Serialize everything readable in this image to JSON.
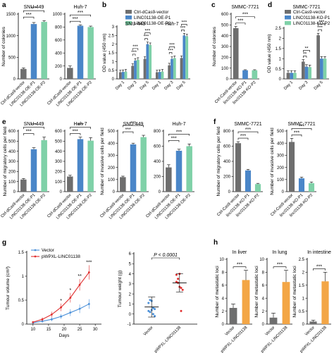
{
  "colors": {
    "ctrl": "#6e6e6e",
    "p1": "#4a86c8",
    "p2": "#7fd1a8",
    "vector": "#4a90d9",
    "linc": "#e03030",
    "h_bar": "#f3a646"
  },
  "chart_data": [
    {
      "id": "a1",
      "panel": "a",
      "type": "bar",
      "title": "SNU-449",
      "ylabel": "Number of colonies",
      "ylim": [
        0,
        1500
      ],
      "yticks": [
        0,
        500,
        1000,
        1500
      ],
      "categories": [
        "Ctrl-dCas9-vector",
        "LINC01138-OE-P1",
        "LINC01138-OE-P2"
      ],
      "values": [
        230,
        1270,
        1320
      ],
      "errors": [
        25,
        35,
        30
      ],
      "sig": [
        {
          "from": 0,
          "to": 1,
          "label": "***"
        },
        {
          "from": 0,
          "to": 2,
          "label": "***"
        }
      ]
    },
    {
      "id": "a2",
      "panel": "",
      "type": "bar",
      "title": "Huh-7",
      "ylabel": "",
      "ylim": [
        0,
        1000
      ],
      "yticks": [
        0,
        200,
        400,
        600,
        800,
        1000
      ],
      "categories": [
        "Ctrl-dCas9-vector",
        "LINC01138-OE-P1",
        "LINC01138-OE-P2"
      ],
      "values": [
        170,
        820,
        800
      ],
      "errors": [
        30,
        15,
        15
      ],
      "sig": [
        {
          "from": 0,
          "to": 1,
          "label": "***"
        },
        {
          "from": 0,
          "to": 2,
          "label": "***"
        }
      ]
    },
    {
      "id": "b",
      "panel": "b",
      "type": "bar",
      "titles": [
        "SNU-449",
        "Huh-7"
      ],
      "ylabel": "OD value (450 nm)",
      "ylim": [
        0,
        3
      ],
      "yticks": [
        0,
        0.5,
        1.0,
        1.5,
        2.0,
        2.5,
        3.0
      ],
      "categories": [
        "Day 1",
        "Day 3",
        "Day 5",
        "Day 1",
        "Day 3",
        "Day 5"
      ],
      "series": [
        {
          "name": "Ctrl-dCas9-vector",
          "values": [
            0.38,
            0.75,
            1.15,
            0.38,
            0.78,
            1.2
          ]
        },
        {
          "name": "LINC01138-OE-P1",
          "values": [
            0.4,
            1.05,
            2.0,
            0.4,
            1.15,
            2.5
          ]
        },
        {
          "name": "LINC01138-OE-P2",
          "values": [
            0.42,
            1.1,
            1.95,
            0.42,
            1.2,
            2.45
          ]
        }
      ],
      "sig": [
        {
          "from": 1,
          "to": 1,
          "label": "***"
        },
        {
          "from": 1,
          "to": 1,
          "label": "***"
        },
        {
          "from": 2,
          "to": 2,
          "label": "***"
        },
        {
          "from": 2,
          "to": 2,
          "label": "***"
        },
        {
          "from": 4,
          "to": 4,
          "label": "***"
        },
        {
          "from": 4,
          "to": 4,
          "label": "***"
        },
        {
          "from": 5,
          "to": 5,
          "label": "***"
        },
        {
          "from": 5,
          "to": 5,
          "label": "***"
        }
      ]
    },
    {
      "id": "c",
      "panel": "c",
      "type": "bar",
      "title": "SMMC-7721",
      "ylabel": "Number of colonies",
      "ylim": [
        0,
        600
      ],
      "yticks": [
        0,
        100,
        200,
        300,
        400,
        500,
        600
      ],
      "categories": [
        "Ctrl-Cas9-vector",
        "linc01138-KO-P1",
        "linc01138-KO-P2"
      ],
      "values": [
        470,
        80,
        80
      ],
      "errors": [
        15,
        5,
        5
      ],
      "sig": [
        {
          "from": 0,
          "to": 1,
          "label": "***"
        },
        {
          "from": 0,
          "to": 2,
          "label": "***"
        }
      ]
    },
    {
      "id": "d",
      "panel": "d",
      "type": "bar",
      "title": "SMMC-7721",
      "ylabel": "OD value (450 nm)",
      "ylim": [
        0,
        2.5
      ],
      "yticks": [
        0,
        0.5,
        1.0,
        1.5,
        2.0,
        2.5
      ],
      "categories": [
        "Day 1",
        "Day 3",
        "Day 5"
      ],
      "series": [
        {
          "name": "Ctrl-Cas9-vector",
          "values": [
            0.3,
            0.85,
            2.15
          ]
        },
        {
          "name": "LINC01138-KO-P1",
          "values": [
            0.3,
            0.6,
            1.0
          ]
        },
        {
          "name": "LINC01138-KO-P2",
          "values": [
            0.3,
            0.58,
            1.0
          ]
        }
      ],
      "sig": [
        {
          "from": 1,
          "to": 1,
          "label": "**"
        },
        {
          "from": 1,
          "to": 1,
          "label": "**"
        },
        {
          "from": 2,
          "to": 2,
          "label": "***"
        },
        {
          "from": 2,
          "to": 2,
          "label": "***"
        }
      ]
    },
    {
      "id": "e1",
      "panel": "e",
      "type": "bar",
      "title": "SNU-449",
      "ylabel": "Number of migratory cells per field",
      "ylim": [
        0,
        600
      ],
      "yticks": [
        0,
        100,
        200,
        300,
        400,
        500,
        600
      ],
      "categories": [
        "Ctrl-dCas9-vector",
        "LINC01138-OE-P1",
        "LINC01138-OE-P2"
      ],
      "values": [
        120,
        420,
        510
      ],
      "errors": [
        10,
        15,
        30
      ],
      "sig": [
        {
          "from": 0,
          "to": 1,
          "label": "***"
        },
        {
          "from": 0,
          "to": 2,
          "label": "***"
        }
      ]
    },
    {
      "id": "e2",
      "panel": "",
      "type": "bar",
      "title": "Huh-7",
      "ylabel": "",
      "ylim": [
        0,
        600
      ],
      "yticks": [
        0,
        100,
        200,
        300,
        400,
        500,
        600
      ],
      "categories": [
        "Ctrl-dCas9-vector",
        "LINC01138-OE-P1",
        "LINC01138-OE-P2"
      ],
      "values": [
        150,
        520,
        505
      ],
      "errors": [
        12,
        20,
        30
      ],
      "sig": [
        {
          "from": 0,
          "to": 1,
          "label": "***"
        },
        {
          "from": 0,
          "to": 2,
          "label": "***"
        }
      ]
    },
    {
      "id": "e3",
      "panel": "",
      "type": "bar",
      "title": "SNU-449",
      "ylabel": "Number of invasive cells per field",
      "ylim": [
        0,
        500
      ],
      "yticks": [
        0,
        100,
        200,
        300,
        400,
        500
      ],
      "categories": [
        "Ctrl-dCas9-vector",
        "LINC01138-OE-P1",
        "LINC01138-OE-P2"
      ],
      "values": [
        120,
        390,
        450
      ],
      "errors": [
        8,
        10,
        15
      ],
      "sig": [
        {
          "from": 0,
          "to": 1,
          "label": "***"
        },
        {
          "from": 0,
          "to": 2,
          "label": "***"
        }
      ]
    },
    {
      "id": "e4",
      "panel": "",
      "type": "bar",
      "title": "Huh-7",
      "ylabel": "",
      "ylim": [
        0,
        800
      ],
      "yticks": [
        0,
        200,
        400,
        600,
        800
      ],
      "categories": [
        "Ctrl-dCas9-vector",
        "LINC01138-OE-P1",
        "LINC01138-OE-P2"
      ],
      "values": [
        320,
        540,
        600
      ],
      "errors": [
        35,
        20,
        30
      ],
      "sig": [
        {
          "from": 0,
          "to": 1,
          "label": "***"
        },
        {
          "from": 0,
          "to": 2,
          "label": "***"
        }
      ]
    },
    {
      "id": "f1",
      "panel": "f",
      "type": "bar",
      "title": "SMMC-7721",
      "ylabel": "Number of migratory cells per field",
      "ylim": [
        0,
        800
      ],
      "yticks": [
        0,
        200,
        400,
        600,
        800
      ],
      "categories": [
        "Ctrl-Cas9-vector",
        "linc01138-KO-P1",
        "linc01138-KO-P2"
      ],
      "values": [
        640,
        280,
        100
      ],
      "errors": [
        20,
        15,
        10
      ],
      "sig": [
        {
          "from": 0,
          "to": 1,
          "label": "***"
        },
        {
          "from": 0,
          "to": 2,
          "label": "***"
        }
      ]
    },
    {
      "id": "f2",
      "panel": "",
      "type": "bar",
      "title": "SMMC-7721",
      "ylabel": "Number of invasive cells per field",
      "ylim": [
        0,
        500
      ],
      "yticks": [
        0,
        100,
        200,
        300,
        400,
        500
      ],
      "categories": [
        "Ctrl-Cas9-vector",
        "linc01138-KO-P1",
        "linc01138-KO-P2"
      ],
      "values": [
        410,
        110,
        70
      ],
      "errors": [
        30,
        10,
        10
      ],
      "sig": [
        {
          "from": 0,
          "to": 1,
          "label": "***"
        },
        {
          "from": 0,
          "to": 2,
          "label": "***"
        }
      ]
    },
    {
      "id": "g1",
      "panel": "g",
      "type": "line",
      "xlabel": "Days",
      "ylabel": "Tumour volume (cm³)",
      "xlim": [
        8,
        32
      ],
      "xticks": [
        10,
        15,
        20,
        25,
        30
      ],
      "ylim": [
        0,
        1.5
      ],
      "yticks": [
        0,
        0.5,
        1.0,
        1.5
      ],
      "x": [
        10,
        13,
        16,
        19,
        22,
        25,
        28
      ],
      "series": [
        {
          "name": "Vector",
          "values": [
            0.03,
            0.06,
            0.1,
            0.16,
            0.24,
            0.32,
            0.42
          ],
          "errors": [
            0.02,
            0.03,
            0.04,
            0.05,
            0.07,
            0.09,
            0.1
          ]
        },
        {
          "name": "pWPXL-LINC01138",
          "values": [
            0.04,
            0.1,
            0.2,
            0.35,
            0.55,
            0.82,
            1.08
          ],
          "errors": [
            0.02,
            0.04,
            0.06,
            0.08,
            0.1,
            0.12,
            0.15
          ]
        }
      ],
      "sig": [
        {
          "x": 19,
          "label": "*"
        },
        {
          "x": 22,
          "label": "*"
        },
        {
          "x": 25,
          "label": "**"
        },
        {
          "x": 28,
          "label": "***"
        }
      ]
    },
    {
      "id": "g2",
      "panel": "",
      "type": "scatter",
      "ylabel": "Tumour weight (g)",
      "ylim": [
        -1,
        6
      ],
      "yticks": [
        -1,
        0,
        1,
        2,
        3,
        4,
        5,
        6
      ],
      "categories": [
        "Vector",
        "pWPXL-LINC01138"
      ],
      "points": [
        [
          1.1,
          1.4,
          1.3,
          0.6,
          0.5,
          0.3,
          0.2,
          0.4,
          0.0,
          -0.2
        ],
        [
          3.9,
          3.5,
          4.0,
          2.6,
          2.4,
          3.2,
          3.1,
          2.7,
          0.3
        ]
      ],
      "means": [
        0.7,
        3.1
      ],
      "errors": [
        1.0,
        0.9
      ],
      "annotation": "P < 0.0001"
    },
    {
      "id": "h1",
      "panel": "h",
      "type": "bar",
      "title": "In liver",
      "ylabel": "Number of metastatic loci",
      "ylim": [
        0,
        10
      ],
      "yticks": [
        0,
        2,
        4,
        6,
        8,
        10
      ],
      "categories": [
        "Vector",
        "pWPXL-LINC01138"
      ],
      "values": [
        2.5,
        6.8
      ],
      "errors": [
        0.6,
        1.5
      ],
      "sig": [
        {
          "from": 0,
          "to": 1,
          "label": "***"
        }
      ]
    },
    {
      "id": "h2",
      "panel": "",
      "type": "bar",
      "title": "In lung",
      "ylabel": "Number of metastatic loci",
      "ylim": [
        0,
        10
      ],
      "yticks": [
        0,
        2,
        4,
        6,
        8,
        10
      ],
      "categories": [
        "Vector",
        "pWPXL-LINC01138"
      ],
      "values": [
        1.0,
        6.5
      ],
      "errors": [
        0.7,
        1.8
      ],
      "sig": [
        {
          "from": 0,
          "to": 1,
          "label": "***"
        }
      ]
    },
    {
      "id": "h3",
      "panel": "",
      "type": "bar",
      "title": "In intestine",
      "ylabel": "Number of metastatic loci",
      "ylim": [
        0,
        2.5
      ],
      "yticks": [
        0,
        0.5,
        1.0,
        1.5,
        2.0,
        2.5
      ],
      "categories": [
        "Vector",
        "pWPXL-LINC01138"
      ],
      "values": [
        0.1,
        1.65
      ],
      "errors": [
        0.05,
        0.35
      ],
      "sig": [
        {
          "from": 0,
          "to": 1,
          "label": "***"
        }
      ]
    }
  ]
}
